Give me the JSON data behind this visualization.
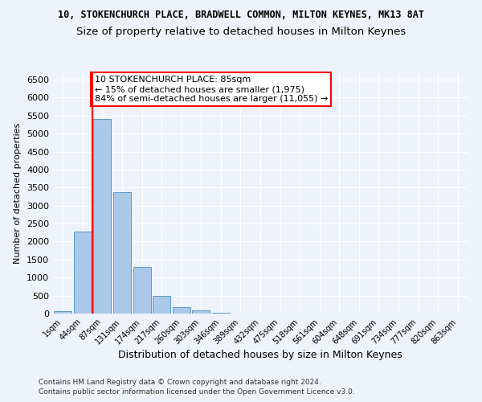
{
  "title": "10, STOKENCHURCH PLACE, BRADWELL COMMON, MILTON KEYNES, MK13 8AT",
  "subtitle": "Size of property relative to detached houses in Milton Keynes",
  "xlabel": "Distribution of detached houses by size in Milton Keynes",
  "ylabel": "Number of detached properties",
  "categories": [
    "1sqm",
    "44sqm",
    "87sqm",
    "131sqm",
    "174sqm",
    "217sqm",
    "260sqm",
    "303sqm",
    "346sqm",
    "389sqm",
    "432sqm",
    "475sqm",
    "518sqm",
    "561sqm",
    "604sqm",
    "648sqm",
    "691sqm",
    "734sqm",
    "777sqm",
    "820sqm",
    "863sqm"
  ],
  "values": [
    75,
    2270,
    5400,
    3380,
    1300,
    490,
    185,
    80,
    30,
    0,
    0,
    0,
    0,
    0,
    0,
    0,
    0,
    0,
    0,
    0,
    0
  ],
  "bar_color": "#aac8e8",
  "bar_edge_color": "#5a9ac8",
  "red_line_index": 2,
  "annotation_text": "10 STOKENCHURCH PLACE: 85sqm\n← 15% of detached houses are smaller (1,975)\n84% of semi-detached houses are larger (11,055) →",
  "annotation_box_color": "white",
  "annotation_box_edge_color": "red",
  "ylim": [
    0,
    6700
  ],
  "yticks": [
    0,
    500,
    1000,
    1500,
    2000,
    2500,
    3000,
    3500,
    4000,
    4500,
    5000,
    5500,
    6000,
    6500
  ],
  "footer_line1": "Contains HM Land Registry data © Crown copyright and database right 2024.",
  "footer_line2": "Contains public sector information licensed under the Open Government Licence v3.0.",
  "background_color": "#eef2fa",
  "grid_color": "#ffffff",
  "title_fontsize": 8.5,
  "subtitle_fontsize": 9.5,
  "ylabel_fontsize": 8,
  "xlabel_fontsize": 9
}
